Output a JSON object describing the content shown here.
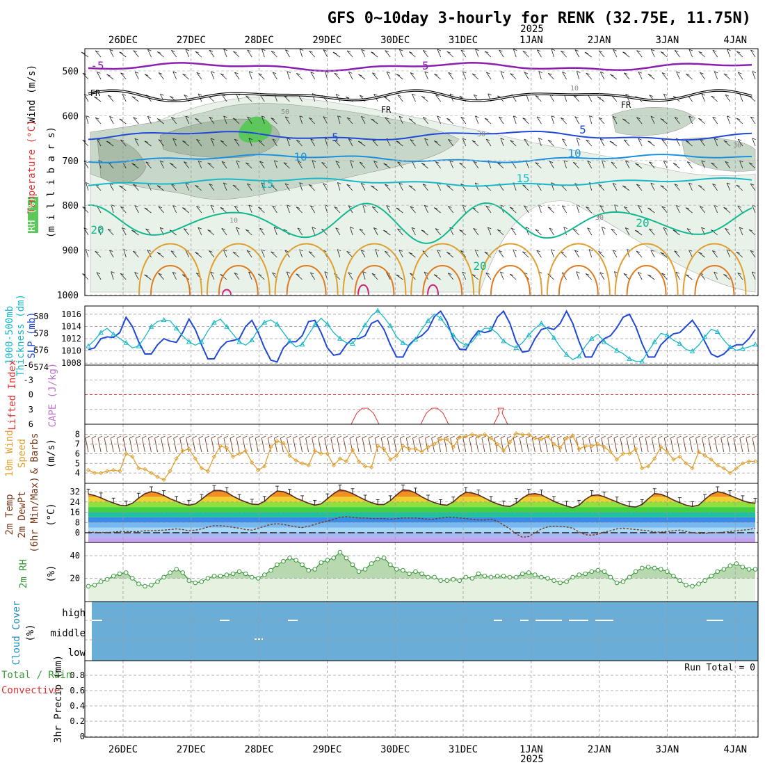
{
  "title": "GFS 0~10day 3-hourly for RENK (32.75E, 11.75N)",
  "year_label": "2025",
  "days": [
    "26DEC",
    "27DEC",
    "28DEC",
    "29DEC",
    "30DEC",
    "31DEC",
    "1JAN",
    "2JAN",
    "3JAN",
    "4JAN"
  ],
  "colors": {
    "purple": "#8a1fb0",
    "black": "#111111",
    "blue": "#2048d8",
    "lightblue": "#1a90e0",
    "cyan": "#18b8c8",
    "green": "#10b890",
    "orange": "#e0a030",
    "darkorange": "#e07a20",
    "magenta": "#d0207a",
    "rh_green": "#5cc85c",
    "cloud": "#6aaed8",
    "red": "#e03030",
    "brown": "#7a3a1a",
    "gray": "#888888"
  },
  "panels": {
    "upper": {
      "ylabel_wind": "Wind (m/s)",
      "ylabel_temp": "Temperature (°C)",
      "ylabel_rh": "RH (%)",
      "ylabel_p": "(m i l l i b a r s)",
      "levels": [
        500,
        600,
        700,
        800,
        900,
        1000
      ],
      "contour_labels": {
        "m5": "-5",
        "fr": "FR",
        "c5": "5",
        "c10": "10",
        "c15": "15",
        "c20": "20",
        "rh30": "30",
        "rh10": "10",
        "rh50": "50"
      }
    },
    "thickness": {
      "ylabel_left": "1000-500mb",
      "ylabel_left2": "Thickness (dm)",
      "ylabel_right": "SLP (mb)",
      "left_ticks": [
        574,
        576,
        578,
        580
      ],
      "right_ticks": [
        1008,
        1010,
        1012,
        1014,
        1016
      ],
      "thickness_values": [
        576.5,
        577.2,
        578.1,
        578.6,
        577.9,
        577.4,
        576.9,
        576.3,
        576.5,
        577.6,
        578.8,
        579.4,
        579.6,
        579.5,
        578.6,
        577.7,
        577.0,
        576.6,
        577.0,
        578.3,
        579.3,
        579.7,
        578.8,
        577.9,
        577.0,
        576.6,
        577.2,
        578.5,
        579.3,
        579.6,
        579.1,
        578.1,
        577.1,
        576.4,
        576.7,
        577.9,
        579.0,
        579.8,
        579.1,
        578.1,
        577.4,
        576.9,
        576.8,
        577.8,
        579.0,
        580.1,
        580.7,
        579.9,
        578.9,
        577.6,
        576.9,
        576.5,
        577.3,
        578.5,
        579.5,
        580.3,
        579.8,
        578.8,
        577.8,
        577.0,
        576.6,
        577.0,
        578.0,
        578.6,
        578.6,
        578.0,
        577.1,
        576.6,
        576.3,
        576.9,
        577.8,
        578.6,
        579.2,
        578.5,
        577.5,
        576.4,
        575.5,
        574.9,
        575.3,
        576.5,
        577.4,
        577.9,
        577.0,
        576.5,
        576.0,
        575.6,
        575.0,
        574.7,
        574.7,
        575.9,
        577.0,
        578.0,
        577.8,
        577.2,
        576.8,
        576.1,
        575.9,
        576.6,
        577.6,
        578.5,
        578.2,
        577.2,
        576.4,
        576.0,
        576.2,
        576.4,
        576.7
      ],
      "slp_values": [
        1010.2,
        1010.5,
        1012.0,
        1012.3,
        1012.2,
        1013.0,
        1015.5,
        1014.0,
        1011.5,
        1009.5,
        1009.5,
        1011.0,
        1012.0,
        1011.6,
        1011.4,
        1013.0,
        1015.2,
        1013.5,
        1011.0,
        1008.7,
        1008.7,
        1010.5,
        1011.5,
        1011.7,
        1012.0,
        1014.0,
        1015.0,
        1013.0,
        1010.5,
        1008.5,
        1008.2,
        1010.5,
        1011.5,
        1011.5,
        1012.5,
        1014.8,
        1015.0,
        1013.0,
        1010.5,
        1009.3,
        1009.5,
        1011.0,
        1012.0,
        1012.0,
        1012.5,
        1014.5,
        1015.0,
        1013.5,
        1011.0,
        1009.0,
        1009.0,
        1011.0,
        1012.0,
        1012.5,
        1013.5,
        1015.6,
        1016.5,
        1014.8,
        1012.0,
        1010.3,
        1010.2,
        1012.0,
        1013.3,
        1013.0,
        1013.3,
        1015.5,
        1016.5,
        1014.5,
        1011.5,
        1009.8,
        1010.0,
        1012.0,
        1013.5,
        1013.8,
        1013.5,
        1014.5,
        1016.5,
        1014.5,
        1011.5,
        1009.0,
        1009.0,
        1011.0,
        1012.0,
        1012.5,
        1013.8,
        1015.5,
        1016.0,
        1014.0,
        1011.2,
        1009.0,
        1009.0,
        1011.0,
        1012.0,
        1012.8,
        1013.0,
        1014.0,
        1015.0,
        1013.5,
        1011.5,
        1009.5,
        1009.0,
        1009.5,
        1010.5,
        1011.0,
        1011.0,
        1012.0,
        1013.5
      ]
    },
    "stability": {
      "ylabel_left": "Lifted Index",
      "ylabel_right": "CAPE (J/kg)",
      "ticks": [
        "-6",
        "-3",
        "0",
        "3",
        "6"
      ]
    },
    "wind10m": {
      "ylabel_left": "10m Wind",
      "ylabel_left2": "Speed",
      "ylabel_left3": "& Barbs",
      "ylabel_right": "(m/s)",
      "ticks": [
        4,
        5,
        6,
        7,
        8
      ],
      "values": [
        4.3,
        4.0,
        4.0,
        4.2,
        4.3,
        4.2,
        6.0,
        5.7,
        4.5,
        4.4,
        4.0,
        3.6,
        3.3,
        4.2,
        5.5,
        6.3,
        6.5,
        5.5,
        4.5,
        4.2,
        5.7,
        6.8,
        6.6,
        5.7,
        6.0,
        6.3,
        5.1,
        4.3,
        4.7,
        6.7,
        7.3,
        7.1,
        5.8,
        5.3,
        5.0,
        4.8,
        6.3,
        6.0,
        6.0,
        4.8,
        5.5,
        5.2,
        6.4,
        5.2,
        4.7,
        4.6,
        6.8,
        6.5,
        5.4,
        5.8,
        6.8,
        6.5,
        6.5,
        6.2,
        6.7,
        7.0,
        7.5,
        7.5,
        6.7,
        7.7,
        7.8,
        8.0,
        7.8,
        8.0,
        7.6,
        7.0,
        6.3,
        7.2,
        8.1,
        8.0,
        8.0,
        7.6,
        7.5,
        7.8,
        7.0,
        6.6,
        7.6,
        7.9,
        6.5,
        6.8,
        6.8,
        7.0,
        6.7,
        6.2,
        5.4,
        6.0,
        6.0,
        6.5,
        4.5,
        4.7,
        5.5,
        6.7,
        6.2,
        5.4,
        5.7,
        5.0,
        4.5,
        6.2,
        5.8,
        5.4,
        4.8,
        4.5,
        4.0,
        4.5,
        5.0,
        5.2,
        5.2
      ]
    },
    "temp2m": {
      "ylabel_left": "2m Temp",
      "ylabel_left2": "2m DewPt",
      "ylabel_left3": "(6hr Min/Max)",
      "ylabel_right": "(°C)",
      "ticks": [
        0,
        8,
        16,
        24,
        32
      ],
      "temp_values": [
        30.2,
        29.0,
        27.2,
        25.0,
        23.2,
        21.5,
        21.0,
        23.0,
        27.0,
        30.5,
        32.0,
        31.0,
        29.0,
        26.5,
        24.5,
        22.5,
        21.5,
        22.5,
        26.0,
        30.0,
        33.0,
        33.0,
        31.5,
        28.5,
        26.0,
        24.0,
        22.3,
        22.0,
        24.5,
        29.0,
        32.5,
        32.0,
        30.0,
        27.0,
        25.0,
        23.0,
        21.5,
        22.5,
        26.5,
        30.5,
        33.5,
        32.5,
        30.5,
        28.0,
        25.5,
        23.5,
        22.0,
        22.0,
        25.0,
        29.5,
        33.5,
        33.0,
        31.0,
        28.0,
        25.5,
        23.5,
        22.0,
        21.5,
        24.0,
        28.5,
        31.5,
        31.0,
        29.5,
        27.0,
        24.5,
        22.5,
        21.0,
        20.5,
        23.0,
        27.0,
        30.0,
        30.5,
        29.5,
        27.0,
        24.5,
        22.5,
        20.8,
        19.5,
        21.5,
        26.0,
        29.0,
        29.5,
        28.0,
        26.0,
        24.0,
        22.0,
        20.5,
        20.0,
        22.0,
        26.5,
        30.5,
        30.0,
        28.0,
        25.5,
        23.5,
        21.5,
        20.5,
        21.5,
        26.0,
        30.0,
        32.0,
        31.0,
        29.0,
        27.0,
        25.0,
        23.5,
        23.0
      ],
      "dew_values": [
        0.5,
        0.3,
        0.2,
        0.2,
        0.5,
        1.0,
        1.0,
        0.8,
        1.0,
        1.5,
        1.5,
        1.8,
        2.0,
        2.5,
        3.0,
        2.5,
        1.5,
        2.0,
        3.0,
        4.5,
        5.5,
        5.5,
        5.0,
        4.2,
        3.5,
        2.5,
        2.0,
        3.5,
        5.0,
        6.5,
        7.0,
        6.5,
        5.5,
        4.5,
        4.0,
        5.0,
        6.5,
        8.0,
        9.0,
        10.5,
        12.0,
        12.5,
        12.0,
        11.5,
        11.5,
        11.0,
        11.0,
        11.0,
        10.5,
        11.0,
        11.5,
        11.5,
        11.5,
        11.0,
        10.5,
        10.5,
        11.5,
        12.0,
        12.0,
        11.5,
        11.0,
        10.5,
        10.0,
        10.0,
        10.5,
        9.0,
        6.0,
        3.0,
        -1.0,
        -3.5,
        -3.0,
        0.0,
        3.0,
        4.5,
        5.0,
        5.0,
        4.5,
        3.5,
        0.5,
        -1.5,
        -2.0,
        -1.0,
        0.5,
        1.5,
        3.0,
        3.5,
        3.0,
        2.5,
        2.0,
        1.5,
        0.5,
        0.5,
        1.0,
        1.5,
        2.0,
        1.0,
        0.0,
        -0.5,
        -0.5,
        0.0,
        0.0,
        0.5,
        1.0,
        1.5,
        2.0,
        2.5,
        3.5
      ]
    },
    "rh2m": {
      "ylabel_left": "2m RH",
      "ylabel_right": "(%)",
      "ticks": [
        20,
        40
      ],
      "values": [
        13,
        14,
        17,
        19,
        22,
        24,
        25,
        20,
        15,
        13,
        14,
        17,
        21,
        25,
        28,
        25,
        18,
        16,
        17,
        20,
        22,
        22,
        23,
        24,
        26,
        24,
        21,
        20,
        23,
        27,
        32,
        35,
        38,
        36,
        32,
        27,
        28,
        34,
        36,
        38,
        43,
        38,
        32,
        26,
        28,
        33,
        37,
        38,
        32,
        28,
        27,
        24,
        26,
        24,
        21,
        21,
        18,
        18,
        19,
        18,
        21,
        20,
        24,
        22,
        21,
        22,
        22,
        21,
        21,
        24,
        25,
        23,
        21,
        20,
        18,
        16,
        17,
        21,
        23,
        24,
        26,
        27,
        26,
        21,
        16,
        17,
        21,
        26,
        29,
        30,
        29,
        28,
        26,
        22,
        18,
        14,
        13,
        15,
        18,
        22,
        26,
        28,
        31,
        33,
        30,
        28,
        28
      ]
    },
    "cloud": {
      "ylabel_left": "Cloud Cover",
      "ylabel_right": "(%)",
      "labels": [
        "high",
        "middle",
        "low"
      ]
    },
    "precip": {
      "ylabel_left": "Total / Rain",
      "ylabel_left2": "Convective",
      "ylabel_right": "3hr Precip (mm)",
      "ticks": [
        "0",
        "0.2",
        "0.4",
        "0.6",
        "0.8"
      ],
      "run_total": "Run Total = 0"
    }
  },
  "chart_data": [
    {
      "type": "line",
      "title": "",
      "ylabel": "1000-500mb Thickness (dm) / SLP (mb)",
      "series": [
        {
          "name": "SLP (mb)",
          "axis": "right",
          "range": [
            1007,
            1017
          ]
        },
        {
          "name": "1000-500mb Thickness (dm)",
          "axis": "left",
          "range": [
            574,
            581
          ]
        }
      ],
      "note_values_in_panels": "panels.thickness"
    },
    {
      "type": "line",
      "ylabel": "10m Wind Speed (m/s)",
      "ylim": [
        3,
        8.7
      ]
    },
    {
      "type": "area",
      "ylabel": "2m Temp / 2m DewPt (°C)",
      "ylim": [
        -8,
        37
      ]
    },
    {
      "type": "area",
      "ylabel": "2m RH (%)",
      "ylim": [
        0,
        48
      ]
    },
    {
      "type": "bar",
      "ylabel": "3hr Precip (mm)",
      "ylim": [
        0,
        0.95
      ],
      "values": [],
      "run_total": 0
    }
  ]
}
